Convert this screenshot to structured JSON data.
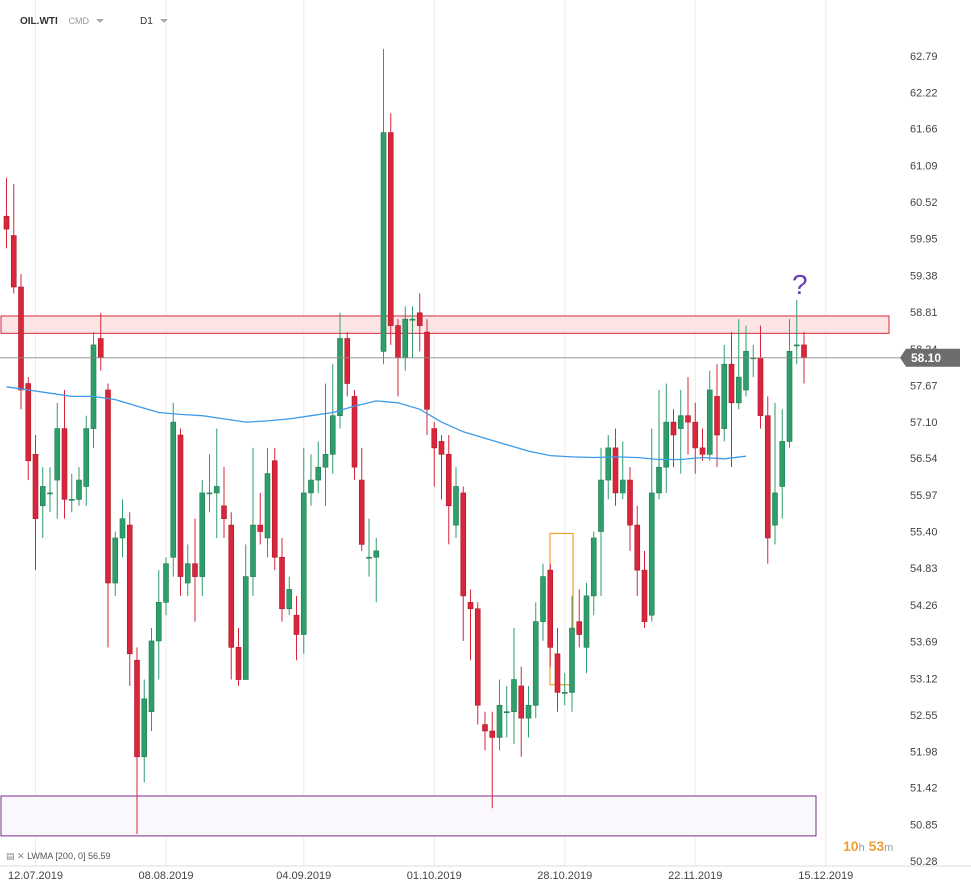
{
  "header": {
    "symbol": "OIL.WTI",
    "market": "CMD",
    "timeframe": "D1"
  },
  "timer": {
    "hours": "10",
    "h": "h",
    "minutes": "53",
    "m": "m"
  },
  "indicator": {
    "label": "LWMA [200, 0]",
    "value": "56.59"
  },
  "annotation": "?",
  "colors": {
    "up": "#2e9e6a",
    "down": "#d9263a",
    "lwma": "#3d9be9",
    "resistance_fill": "#fde0e0",
    "resistance_stroke": "#d9263a",
    "support_stroke": "#7b2d8e",
    "support_fill": "#faf7fd",
    "box_stroke": "#f0a030",
    "price_label_bg": "#6d6d6d"
  },
  "chart_data": {
    "type": "candlestick",
    "ylim": [
      50.28,
      63.2
    ],
    "y_ticks": [
      "62.79",
      "62.22",
      "61.66",
      "61.09",
      "60.52",
      "59.95",
      "59.38",
      "58.81",
      "58.24",
      "57.67",
      "57.10",
      "56.54",
      "55.97",
      "55.40",
      "54.83",
      "54.26",
      "53.69",
      "53.12",
      "52.55",
      "51.98",
      "51.42",
      "50.85",
      "50.28"
    ],
    "x_ticks": [
      {
        "label": "12.07.2019",
        "index": 4
      },
      {
        "label": "08.08.2019",
        "index": 22
      },
      {
        "label": "04.09.2019",
        "index": 41
      },
      {
        "label": "01.10.2019",
        "index": 59
      },
      {
        "label": "28.10.2019",
        "index": 77
      },
      {
        "label": "22.11.2019",
        "index": 95
      },
      {
        "label": "15.12.2019",
        "index": 113
      }
    ],
    "last_price": "58.10",
    "lwma_200": [
      [
        0,
        57.65
      ],
      [
        3,
        57.6
      ],
      [
        6,
        57.55
      ],
      [
        9,
        57.5
      ],
      [
        12,
        57.5
      ],
      [
        15,
        57.45
      ],
      [
        18,
        57.35
      ],
      [
        21,
        57.25
      ],
      [
        24,
        57.22
      ],
      [
        27,
        57.2
      ],
      [
        30,
        57.15
      ],
      [
        33,
        57.1
      ],
      [
        36,
        57.12
      ],
      [
        39,
        57.15
      ],
      [
        42,
        57.2
      ],
      [
        45,
        57.25
      ],
      [
        48,
        57.35
      ],
      [
        51,
        57.43
      ],
      [
        54,
        57.4
      ],
      [
        57,
        57.3
      ],
      [
        60,
        57.1
      ],
      [
        63,
        56.95
      ],
      [
        66,
        56.85
      ],
      [
        69,
        56.75
      ],
      [
        72,
        56.65
      ],
      [
        75,
        56.58
      ],
      [
        78,
        56.56
      ],
      [
        81,
        56.55
      ],
      [
        84,
        56.56
      ],
      [
        87,
        56.55
      ],
      [
        90,
        56.52
      ],
      [
        93,
        56.52
      ],
      [
        96,
        56.55
      ],
      [
        99,
        56.53
      ],
      [
        102,
        56.57
      ]
    ],
    "candles": [
      [
        60.3,
        60.1,
        60.9,
        59.8
      ],
      [
        60.0,
        59.2,
        60.8,
        59.1
      ],
      [
        59.2,
        57.6,
        59.4,
        57.3
      ],
      [
        57.7,
        56.5,
        57.8,
        56.2
      ],
      [
        56.6,
        55.6,
        56.9,
        54.8
      ],
      [
        55.8,
        56.1,
        56.4,
        55.3
      ],
      [
        56.0,
        56.0,
        56.4,
        55.7
      ],
      [
        56.2,
        57.0,
        57.4,
        55.6
      ],
      [
        57.0,
        55.9,
        57.6,
        55.6
      ],
      [
        55.9,
        55.9,
        56.3,
        55.7
      ],
      [
        55.9,
        56.2,
        56.4,
        55.8
      ],
      [
        56.1,
        57.0,
        57.2,
        55.8
      ],
      [
        57.0,
        58.3,
        58.5,
        56.7
      ],
      [
        58.4,
        58.1,
        58.8,
        57.9
      ],
      [
        57.6,
        54.6,
        57.7,
        53.6
      ],
      [
        54.6,
        55.3,
        55.4,
        54.4
      ],
      [
        55.3,
        55.6,
        55.9,
        55.0
      ],
      [
        55.5,
        53.5,
        55.7,
        53.0
      ],
      [
        53.4,
        51.9,
        53.6,
        50.7
      ],
      [
        51.9,
        52.8,
        53.1,
        51.5
      ],
      [
        52.6,
        53.7,
        53.9,
        52.3
      ],
      [
        53.7,
        54.3,
        54.8,
        53.1
      ],
      [
        54.3,
        54.9,
        55.0,
        54.1
      ],
      [
        55.0,
        57.1,
        57.4,
        54.7
      ],
      [
        56.9,
        54.7,
        57.0,
        54.4
      ],
      [
        54.6,
        54.9,
        55.2,
        54.4
      ],
      [
        54.9,
        54.7,
        55.6,
        54.0
      ],
      [
        54.7,
        56.0,
        56.2,
        54.4
      ],
      [
        56.0,
        56.0,
        56.6,
        55.7
      ],
      [
        56.0,
        56.1,
        57.0,
        55.3
      ],
      [
        55.8,
        55.6,
        56.4,
        55.3
      ],
      [
        55.5,
        53.6,
        55.7,
        53.1
      ],
      [
        53.6,
        53.1,
        53.9,
        53.0
      ],
      [
        53.1,
        54.7,
        55.2,
        53.1
      ],
      [
        54.7,
        55.5,
        56.7,
        54.4
      ],
      [
        55.5,
        55.4,
        56.0,
        55.2
      ],
      [
        55.3,
        56.3,
        56.7,
        55.0
      ],
      [
        56.5,
        55.0,
        56.7,
        54.8
      ],
      [
        55.0,
        54.2,
        55.3,
        54.0
      ],
      [
        54.2,
        54.5,
        54.7,
        54.1
      ],
      [
        54.1,
        53.8,
        54.4,
        53.4
      ],
      [
        53.8,
        56.0,
        56.7,
        53.5
      ],
      [
        56.0,
        56.2,
        56.6,
        55.8
      ],
      [
        56.2,
        56.4,
        56.8,
        56.0
      ],
      [
        56.4,
        56.6,
        57.7,
        55.8
      ],
      [
        56.6,
        57.2,
        58.0,
        56.3
      ],
      [
        57.2,
        58.4,
        58.8,
        57.0
      ],
      [
        58.4,
        57.7,
        58.5,
        57.5
      ],
      [
        57.5,
        56.4,
        57.6,
        56.2
      ],
      [
        56.2,
        55.2,
        56.7,
        55.1
      ],
      [
        55.0,
        55.0,
        55.6,
        54.7
      ],
      [
        55.0,
        55.1,
        55.3,
        54.3
      ],
      [
        58.2,
        61.6,
        62.9,
        58.0
      ],
      [
        61.6,
        58.6,
        61.9,
        58.3
      ],
      [
        58.6,
        58.1,
        58.7,
        57.5
      ],
      [
        58.1,
        58.7,
        58.9,
        57.9
      ],
      [
        58.7,
        58.7,
        58.9,
        58.1
      ],
      [
        58.8,
        58.6,
        59.1,
        58.2
      ],
      [
        58.5,
        57.3,
        58.7,
        56.9
      ],
      [
        57.0,
        56.7,
        57.1,
        56.1
      ],
      [
        56.8,
        56.6,
        56.9,
        55.9
      ],
      [
        56.6,
        55.8,
        56.9,
        55.2
      ],
      [
        55.5,
        56.1,
        56.4,
        55.3
      ],
      [
        56.0,
        54.4,
        56.1,
        53.7
      ],
      [
        54.3,
        54.2,
        54.5,
        53.4
      ],
      [
        54.2,
        52.7,
        54.3,
        52.4
      ],
      [
        52.4,
        52.3,
        52.6,
        52.0
      ],
      [
        52.3,
        52.2,
        52.6,
        51.1
      ],
      [
        52.2,
        52.7,
        53.1,
        52.0
      ],
      [
        52.6,
        52.6,
        53.0,
        52.2
      ],
      [
        52.6,
        53.1,
        53.9,
        52.1
      ],
      [
        53.0,
        52.5,
        53.3,
        51.9
      ],
      [
        52.5,
        52.7,
        53.0,
        52.2
      ],
      [
        52.7,
        54.0,
        54.3,
        52.5
      ],
      [
        54.0,
        54.7,
        54.9,
        53.7
      ],
      [
        54.8,
        53.6,
        54.9,
        53.3
      ],
      [
        53.5,
        52.9,
        53.9,
        52.6
      ],
      [
        52.9,
        52.9,
        53.2,
        52.7
      ],
      [
        52.9,
        53.9,
        54.4,
        52.6
      ],
      [
        54.0,
        53.8,
        54.5,
        53.6
      ],
      [
        53.6,
        54.4,
        54.6,
        53.2
      ],
      [
        54.4,
        55.3,
        55.4,
        54.1
      ],
      [
        55.4,
        56.2,
        56.7,
        54.4
      ],
      [
        56.2,
        56.7,
        56.9,
        55.9
      ],
      [
        56.7,
        56.0,
        57.0,
        55.8
      ],
      [
        56.0,
        56.2,
        56.8,
        55.9
      ],
      [
        56.2,
        55.5,
        56.4,
        55.1
      ],
      [
        55.5,
        54.8,
        55.8,
        54.4
      ],
      [
        54.8,
        54.0,
        55.1,
        53.9
      ],
      [
        54.1,
        56.0,
        57.0,
        54.0
      ],
      [
        56.0,
        56.4,
        57.6,
        55.9
      ],
      [
        56.4,
        57.1,
        57.7,
        56.0
      ],
      [
        57.1,
        56.9,
        57.3,
        56.4
      ],
      [
        57.0,
        57.2,
        57.6,
        56.3
      ],
      [
        57.2,
        57.1,
        57.8,
        56.6
      ],
      [
        57.1,
        56.7,
        57.4,
        56.3
      ],
      [
        56.7,
        56.6,
        57.0,
        56.5
      ],
      [
        56.6,
        57.6,
        57.9,
        56.5
      ],
      [
        57.5,
        56.9,
        58.0,
        56.4
      ],
      [
        57.0,
        58.0,
        58.3,
        56.8
      ],
      [
        58.0,
        57.4,
        58.5,
        56.4
      ],
      [
        57.4,
        57.8,
        58.7,
        57.3
      ],
      [
        57.6,
        58.2,
        58.6,
        57.5
      ],
      [
        58.1,
        58.1,
        58.3,
        57.8
      ],
      [
        58.1,
        57.2,
        58.6,
        57.0
      ],
      [
        57.2,
        55.3,
        57.5,
        54.9
      ],
      [
        55.5,
        56.0,
        57.4,
        55.2
      ],
      [
        56.1,
        56.8,
        57.3,
        55.6
      ],
      [
        56.8,
        58.2,
        58.7,
        56.7
      ],
      [
        58.3,
        58.3,
        59.0,
        58.0
      ],
      [
        58.3,
        58.1,
        58.5,
        57.7
      ]
    ]
  }
}
